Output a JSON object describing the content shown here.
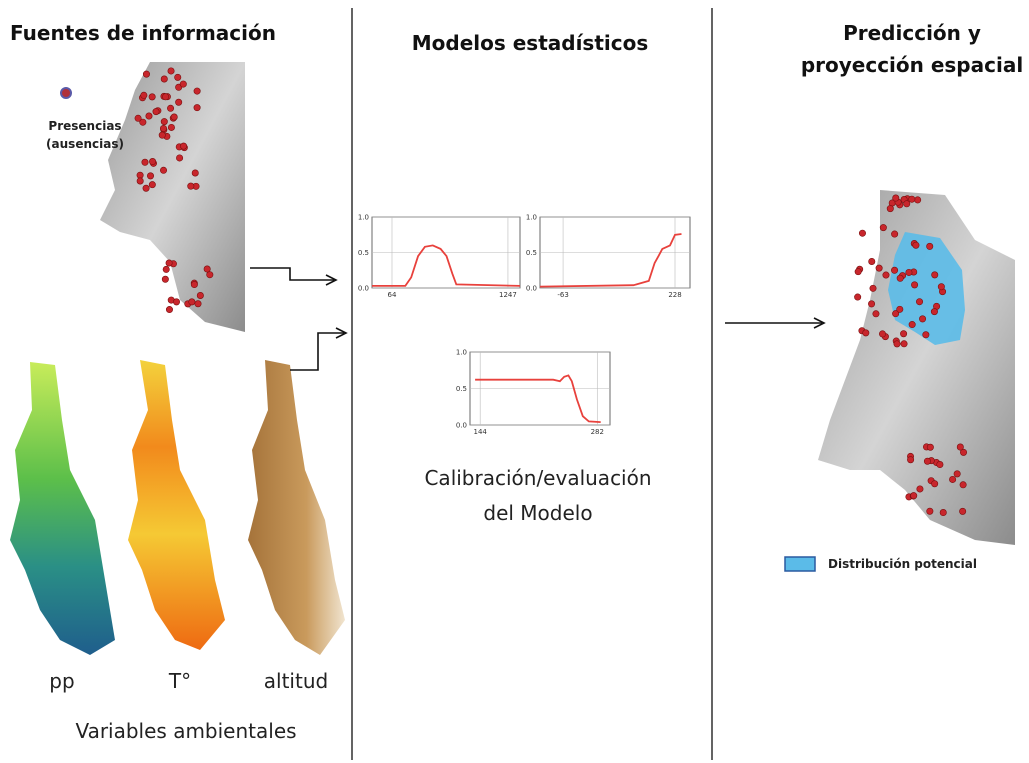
{
  "header": {
    "left_title": "Fuentes de información",
    "center_title": "Modelos estadísticos",
    "right_title": [
      "Predicción y",
      "proyección espacial"
    ]
  },
  "sources": {
    "presence_label": [
      "Presencias",
      "(ausencias)"
    ],
    "variables": [
      "pp",
      "T°",
      "altitud"
    ],
    "variables_caption": "Variables ambientales"
  },
  "models": {
    "caption": [
      "Calibración/evaluación",
      "del Modelo"
    ],
    "response_curves": [
      {
        "xlim": [
          -140,
          1370
        ],
        "ylim": [
          0,
          1
        ],
        "xticks": [
          64,
          1247
        ],
        "yticks": [
          {
            "value": 0,
            "label": "0.0"
          },
          {
            "value": 0.5,
            "label": "0.5"
          },
          {
            "value": 1,
            "label": "1.0"
          }
        ],
        "color": "#e8413c",
        "x": [
          -140,
          200,
          260,
          330,
          400,
          480,
          560,
          620,
          680,
          720,
          1370
        ],
        "values": [
          0.03,
          0.03,
          0.15,
          0.45,
          0.58,
          0.6,
          0.55,
          0.45,
          0.2,
          0.05,
          0.03
        ]
      },
      {
        "xlim": [
          -123,
          267
        ],
        "ylim": [
          0,
          1
        ],
        "xticks": [
          -63,
          228
        ],
        "yticks": [
          {
            "value": 0,
            "label": "0.0"
          },
          {
            "value": 0.5,
            "label": "0.5"
          },
          {
            "value": 1,
            "label": "1.0"
          }
        ],
        "color": "#e8413c",
        "x": [
          -123,
          120,
          160,
          175,
          185,
          195,
          215,
          228,
          245
        ],
        "values": [
          0.02,
          0.04,
          0.1,
          0.35,
          0.45,
          0.55,
          0.6,
          0.75,
          0.76
        ]
      },
      {
        "xlim": [
          132,
          297
        ],
        "ylim": [
          0,
          1
        ],
        "xticks": [
          144,
          282
        ],
        "yticks": [
          {
            "value": 0,
            "label": "0.0"
          },
          {
            "value": 0.5,
            "label": "0.5"
          },
          {
            "value": 1,
            "label": "1.0"
          }
        ],
        "color": "#e8413c",
        "x": [
          138,
          230,
          238,
          243,
          248,
          252,
          258,
          265,
          272,
          286
        ],
        "values": [
          0.62,
          0.62,
          0.6,
          0.66,
          0.68,
          0.6,
          0.35,
          0.12,
          0.05,
          0.04
        ]
      }
    ]
  },
  "prediction": {
    "legend_label": "Distribución potencial"
  }
}
